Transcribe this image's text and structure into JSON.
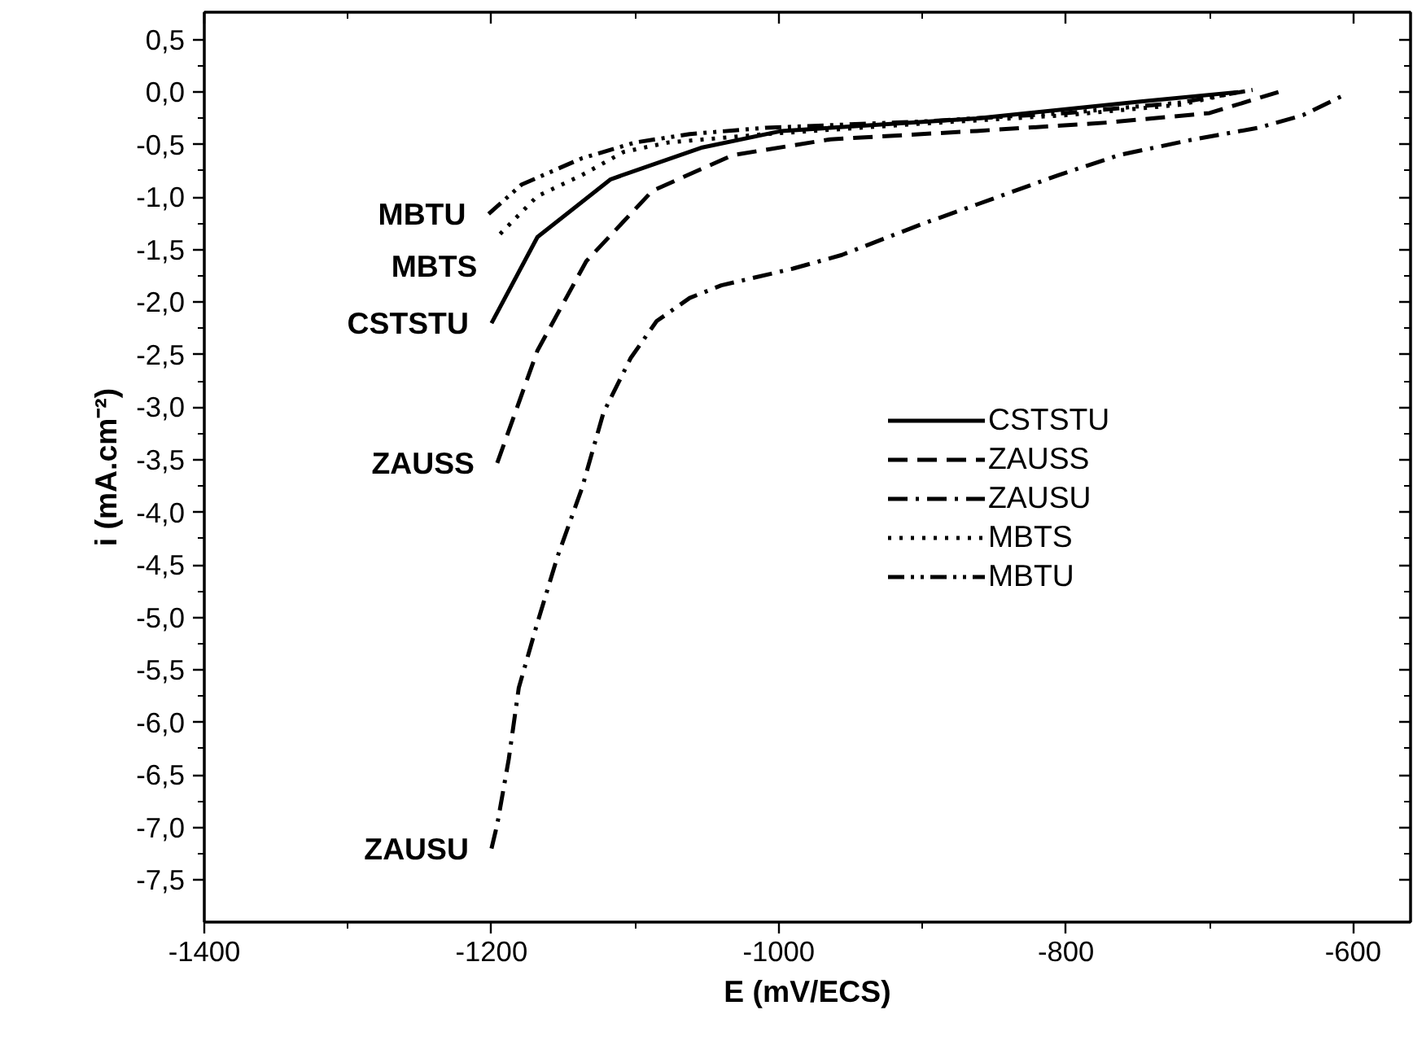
{
  "chart_data": {
    "type": "line",
    "xlabel": "E (mV/ECS)",
    "ylabel": "i (mA.cm⁻²)",
    "xlim": [
      -1400,
      -560
    ],
    "ylim": [
      -7.9,
      0.76
    ],
    "xticks": [
      -1400,
      -1200,
      -1000,
      -800,
      -600
    ],
    "yticks": [
      {
        "value": 0.5,
        "label": "0,5"
      },
      {
        "value": 0.0,
        "label": "0,0"
      },
      {
        "value": -0.5,
        "label": "-0,5"
      },
      {
        "value": -1.0,
        "label": "-1,0"
      },
      {
        "value": -1.5,
        "label": "-1,5"
      },
      {
        "value": -2.0,
        "label": "-2,0"
      },
      {
        "value": -2.5,
        "label": "-2,5"
      },
      {
        "value": -3.0,
        "label": "-3,0"
      },
      {
        "value": -3.5,
        "label": "-3,5"
      },
      {
        "value": -4.0,
        "label": "-4,0"
      },
      {
        "value": -4.5,
        "label": "-4,5"
      },
      {
        "value": -5.0,
        "label": "-5,0"
      },
      {
        "value": -5.5,
        "label": "-5,5"
      },
      {
        "value": -6.0,
        "label": "-6,0"
      },
      {
        "value": -6.5,
        "label": "-6,5"
      },
      {
        "value": -7.0,
        "label": "-7,0"
      },
      {
        "value": -7.5,
        "label": "-7,5"
      }
    ],
    "grid": false,
    "legend": "right",
    "marker": "none",
    "series": [
      {
        "name": "CSTSTU",
        "color": "#000000",
        "line_style": "solid",
        "x": [
          -1200,
          -1168,
          -1117,
          -1054,
          -998,
          -862,
          -748,
          -680
        ],
        "values": [
          -2.2,
          -1.38,
          -0.83,
          -0.53,
          -0.37,
          -0.25,
          -0.09,
          0.0
        ]
      },
      {
        "name": "ZAUSS",
        "color": "#000000",
        "line_style": "dashed",
        "x": [
          -1196,
          -1168,
          -1134,
          -1088,
          -1032,
          -964,
          -862,
          -771,
          -700,
          -652
        ],
        "values": [
          -3.53,
          -2.46,
          -1.61,
          -0.94,
          -0.6,
          -0.45,
          -0.37,
          -0.29,
          -0.2,
          0.0
        ]
      },
      {
        "name": "ZAUSU",
        "color": "#000000",
        "line_style": "dashdot",
        "x": [
          -1200,
          -1196,
          -1188,
          -1181,
          -1168,
          -1154,
          -1137,
          -1122,
          -1103,
          -1085,
          -1062,
          -1040,
          -990,
          -956,
          -899,
          -862,
          -805,
          -763,
          -711,
          -666,
          -635,
          -605
        ],
        "values": [
          -7.2,
          -6.97,
          -6.35,
          -5.67,
          -5.05,
          -4.42,
          -3.77,
          -3.05,
          -2.53,
          -2.18,
          -1.96,
          -1.84,
          -1.68,
          -1.55,
          -1.25,
          -1.07,
          -0.79,
          -0.6,
          -0.45,
          -0.34,
          -0.22,
          -0.02
        ]
      },
      {
        "name": "MBTS",
        "color": "#000000",
        "line_style": "dotted",
        "x": [
          -1194,
          -1168,
          -1137,
          -1108,
          -1077,
          -1009,
          -900,
          -800,
          -720,
          -680
        ],
        "values": [
          -1.35,
          -0.99,
          -0.79,
          -0.57,
          -0.48,
          -0.4,
          -0.3,
          -0.22,
          -0.12,
          0.0
        ]
      },
      {
        "name": "MBTU",
        "color": "#000000",
        "line_style": "dashdotdot",
        "x": [
          -1202,
          -1179,
          -1137,
          -1100,
          -1062,
          -1009,
          -900,
          -800,
          -720,
          -670
        ],
        "values": [
          -1.16,
          -0.88,
          -0.63,
          -0.48,
          -0.4,
          -0.34,
          -0.28,
          -0.2,
          -0.1,
          0.02
        ]
      }
    ],
    "annotations": [
      {
        "text": "MBTU",
        "x": -1202,
        "y": -1.16
      },
      {
        "text": "MBTS",
        "x": -1194,
        "y": -1.35
      },
      {
        "text": "CSTSTU",
        "x": -1200,
        "y": -2.2
      },
      {
        "text": "ZAUSS",
        "x": -1196,
        "y": -3.53
      },
      {
        "text": "ZAUSU",
        "x": -1200,
        "y": -7.2
      }
    ]
  }
}
